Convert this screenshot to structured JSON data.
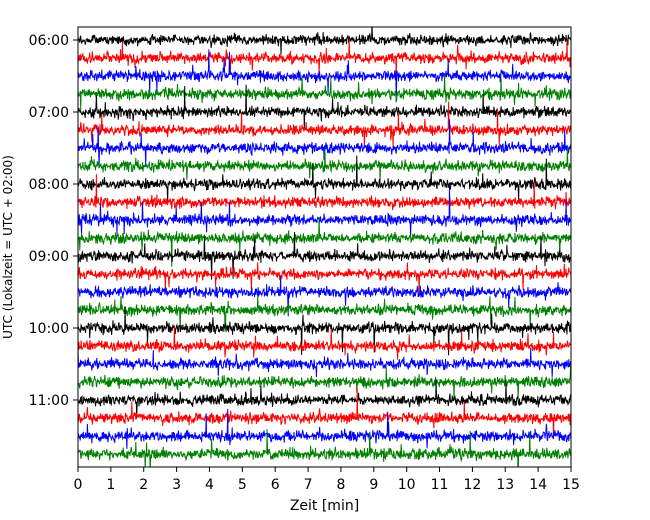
{
  "chart_data": {
    "type": "line",
    "title": "",
    "xlabel": "Zeit  [min]",
    "ylabel": "UTC (Lokalzeit = UTC + 02:00)",
    "xlim": [
      0,
      15
    ],
    "x_ticks": [
      "0",
      "1",
      "2",
      "3",
      "4",
      "5",
      "6",
      "7",
      "8",
      "9",
      "10",
      "11",
      "12",
      "13",
      "14",
      "15"
    ],
    "y_ticks": [
      "06:00",
      "07:00",
      "08:00",
      "09:00",
      "10:00",
      "11:00"
    ],
    "y_start_time": "06:00",
    "trace_interval_min": 15,
    "trace_count": 24,
    "trace_color_cycle": [
      "#000000",
      "#ff0000",
      "#0000ff",
      "#008000"
    ],
    "grid": false,
    "legend": "none"
  }
}
